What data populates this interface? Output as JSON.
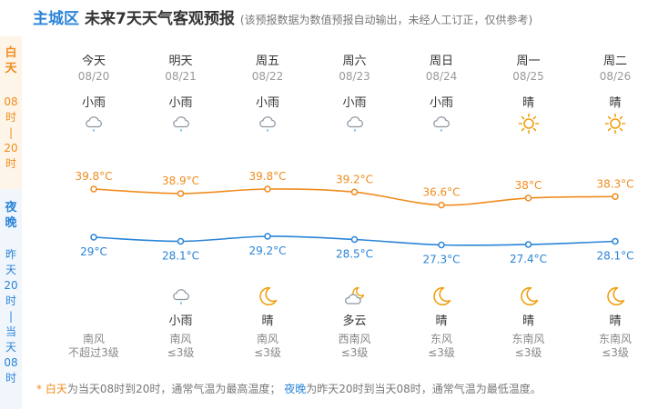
{
  "header": {
    "region": "主城区",
    "title": "未来7天天气客观预报",
    "disclaimer": "(该预报数据为数值预报自动输出，未经人工订正，仅供参考)"
  },
  "side": {
    "day_label": [
      "白",
      "天"
    ],
    "day_range": [
      "08",
      "时",
      "|",
      "20",
      "时"
    ],
    "night_label": [
      "夜",
      "晚"
    ],
    "night_range": [
      "昨",
      "天",
      "20",
      "时",
      "|",
      "当",
      "天",
      "08",
      "时"
    ]
  },
  "days": [
    {
      "name": "今天",
      "date": "08/20",
      "day_weather": "小雨",
      "day_icon": "light-rain-icon",
      "night_weather": "",
      "night_icon": "",
      "wind_dir": "南风",
      "wind_level": "不超过3级"
    },
    {
      "name": "明天",
      "date": "08/21",
      "day_weather": "小雨",
      "day_icon": "light-rain-icon",
      "night_weather": "小雨",
      "night_icon": "light-rain-icon",
      "wind_dir": "南风",
      "wind_level": "≤3级"
    },
    {
      "name": "周五",
      "date": "08/22",
      "day_weather": "小雨",
      "day_icon": "light-rain-icon",
      "night_weather": "晴",
      "night_icon": "moon-icon",
      "wind_dir": "南风",
      "wind_level": "≤3级"
    },
    {
      "name": "周六",
      "date": "08/23",
      "day_weather": "小雨",
      "day_icon": "light-rain-icon",
      "night_weather": "多云",
      "night_icon": "cloudy-night-icon",
      "wind_dir": "西南风",
      "wind_level": "≤3级"
    },
    {
      "name": "周日",
      "date": "08/24",
      "day_weather": "小雨",
      "day_icon": "light-rain-icon",
      "night_weather": "晴",
      "night_icon": "moon-icon",
      "wind_dir": "东风",
      "wind_level": "≤3级"
    },
    {
      "name": "周一",
      "date": "08/25",
      "day_weather": "晴",
      "day_icon": "sun-icon",
      "night_weather": "晴",
      "night_icon": "moon-icon",
      "wind_dir": "东南风",
      "wind_level": "≤3级"
    },
    {
      "name": "周二",
      "date": "08/26",
      "day_weather": "晴",
      "day_icon": "sun-icon",
      "night_weather": "晴",
      "night_icon": "moon-icon",
      "wind_dir": "东南风",
      "wind_level": "≤3级"
    }
  ],
  "chart_data": {
    "type": "line",
    "categories": [
      "08/20",
      "08/21",
      "08/22",
      "08/23",
      "08/24",
      "08/25",
      "08/26"
    ],
    "series": [
      {
        "values": [
          39.8,
          38.9,
          39.8,
          39.2,
          36.6,
          38,
          38.3
        ],
        "labels": [
          "39.8°C",
          "38.9°C",
          "39.8°C",
          "39.2°C",
          "36.6°C",
          "38°C",
          "38.3°C"
        ],
        "color": "#f08c1e"
      },
      {
        "values": [
          29,
          28.1,
          29.2,
          28.5,
          27.3,
          27.4,
          28.1
        ],
        "labels": [
          "29°C",
          "28.1°C",
          "29.2°C",
          "28.5°C",
          "27.3°C",
          "27.4°C",
          "28.1°C"
        ],
        "color": "#2a84d8"
      }
    ]
  },
  "note": {
    "star": "*",
    "day_word": "白天",
    "day_text": "为当天08时到20时，通常气温为最高温度；",
    "night_word": "夜晚",
    "night_text": "为昨天20时到当天08时，通常气温为最低温度。"
  },
  "colors": {
    "accent_day": "#f08c1e",
    "accent_night": "#2a84d8",
    "brand": "#2a84d8"
  }
}
